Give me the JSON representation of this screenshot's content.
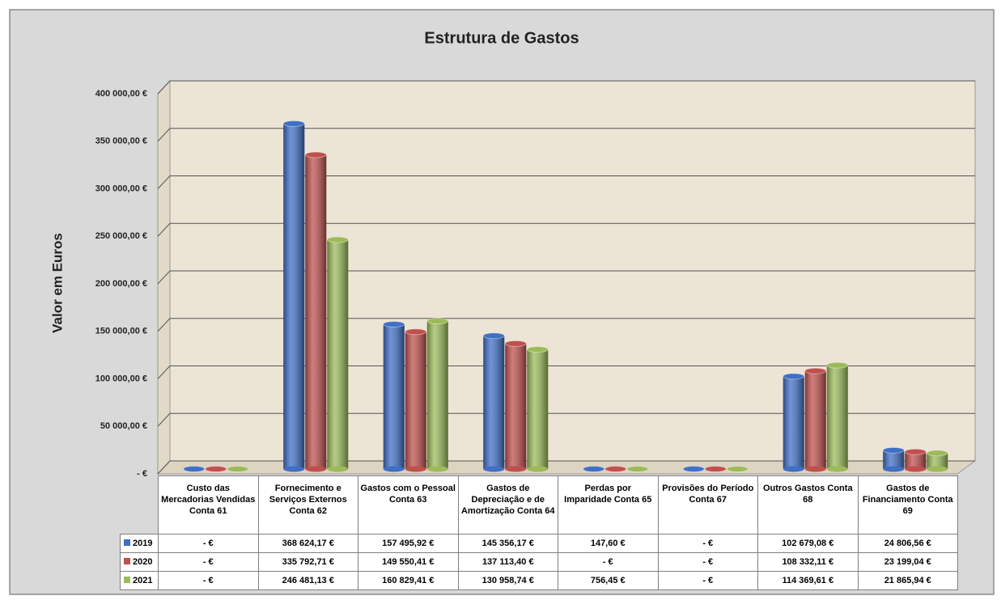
{
  "chart_data": {
    "type": "bar",
    "title": "Estrutura de Gastos",
    "y_label": "Valor em Euros",
    "categories": [
      "Custo das Mercadorias Vendidas Conta 61",
      "Fornecimento e Serviços Externos Conta 62",
      "Gastos com o Pessoal Conta 63",
      "Gastos de Depreciação e de Amortização Conta 64",
      "Perdas por Imparidade Conta 65",
      "Provisões do Período Conta 67",
      "Outros Gastos Conta 68",
      "Gastos de Financiamento Conta 69"
    ],
    "series": [
      {
        "name": "2019",
        "color": "#3f6fc6",
        "values": [
          0,
          368624.17,
          157495.92,
          145356.17,
          147.6,
          0,
          102679.08,
          24806.56
        ],
        "value_labels": [
          "- €",
          "368 624,17 €",
          "157 495,92 €",
          "145 356,17 €",
          "147,60 €",
          "- €",
          "102 679,08 €",
          "24 806,56 €"
        ]
      },
      {
        "name": "2020",
        "color": "#c0504d",
        "values": [
          0,
          335792.71,
          149550.41,
          137113.4,
          0,
          0,
          108332.11,
          23199.04
        ],
        "value_labels": [
          "- €",
          "335 792,71 €",
          "149 550,41 €",
          "137 113,40 €",
          "- €",
          "- €",
          "108 332,11 €",
          "23 199,04 €"
        ]
      },
      {
        "name": "2021",
        "color": "#9bbb59",
        "values": [
          0,
          246481.13,
          160829.41,
          130958.74,
          756.45,
          0,
          114369.61,
          21865.94
        ],
        "value_labels": [
          "- €",
          "246 481,13 €",
          "160 829,41 €",
          "130 958,74 €",
          "756,45 €",
          "- €",
          "114 369,61 €",
          "21 865,94 €"
        ]
      }
    ],
    "ylim": [
      0,
      400000
    ],
    "yticks": [
      {
        "value": 0,
        "label": "-  €"
      },
      {
        "value": 50000,
        "label": "50 000,00 €"
      },
      {
        "value": 100000,
        "label": "100 000,00 €"
      },
      {
        "value": 150000,
        "label": "150 000,00 €"
      },
      {
        "value": 200000,
        "label": "200 000,00 €"
      },
      {
        "value": 250000,
        "label": "250 000,00 €"
      },
      {
        "value": 300000,
        "label": "300 000,00 €"
      },
      {
        "value": 350000,
        "label": "350 000,00 €"
      },
      {
        "value": 400000,
        "label": "400 000,00 €"
      }
    ],
    "grid": true
  }
}
